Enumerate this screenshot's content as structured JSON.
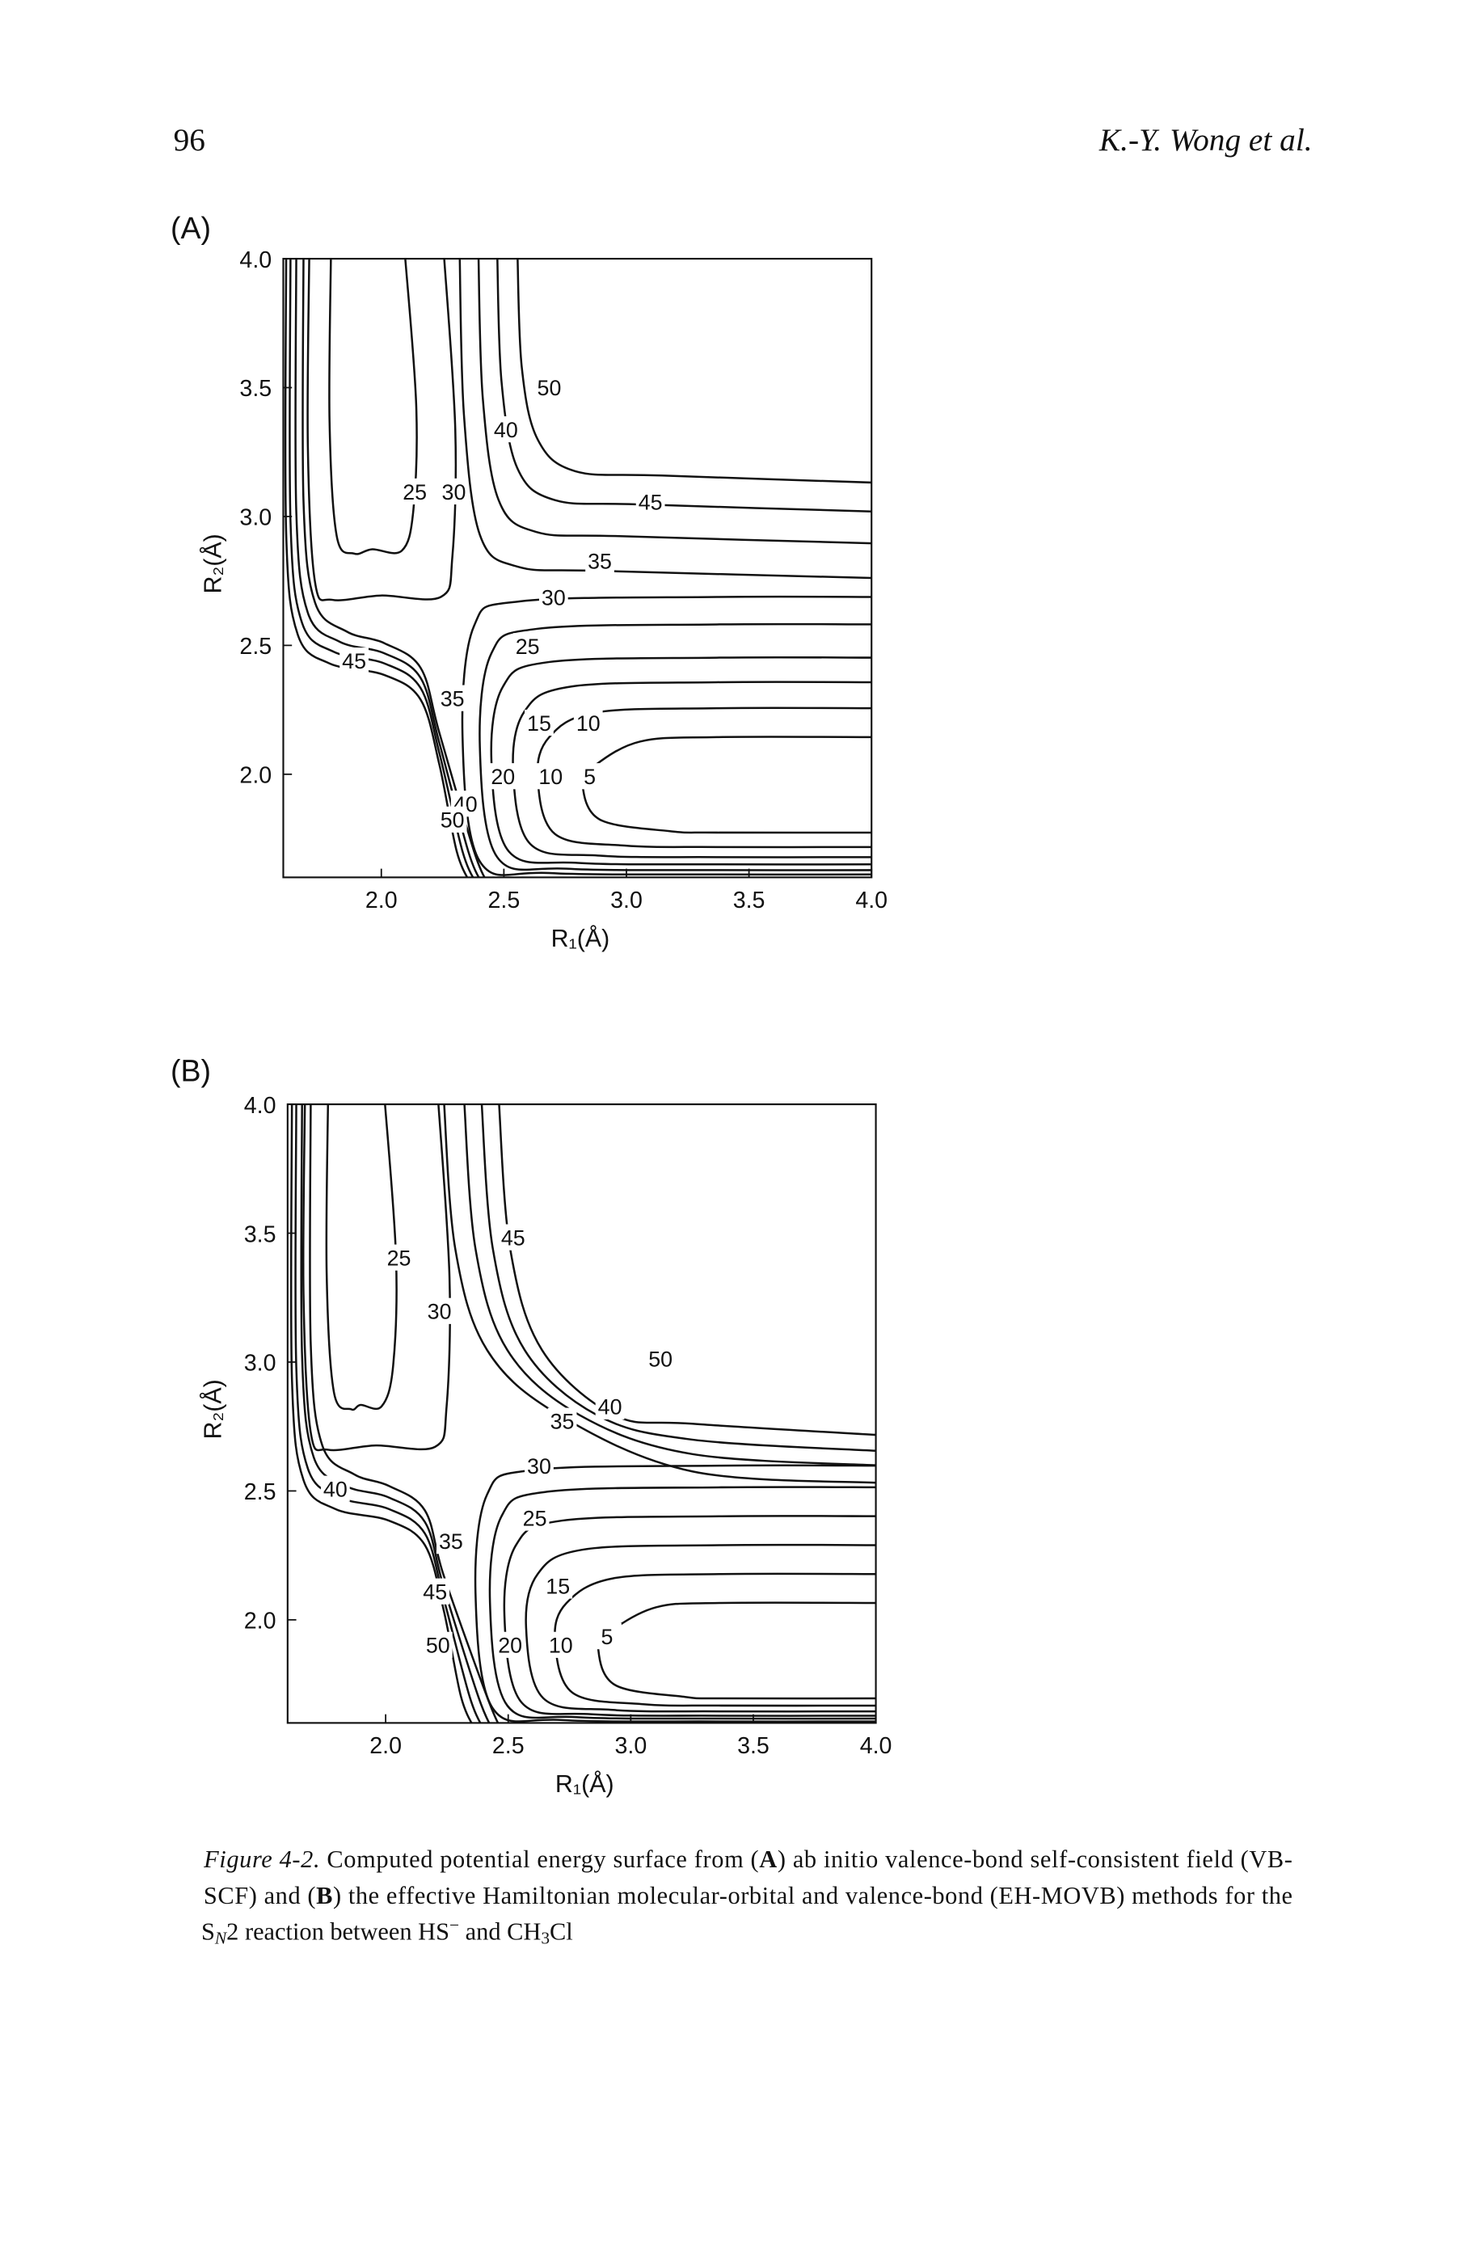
{
  "header": {
    "page_number": "96",
    "running_head": "K.-Y. Wong et al."
  },
  "chart_data": [
    {
      "type": "contour",
      "panel_label": "(A)",
      "xlabel": "R₁(Å)",
      "ylabel": "R₂(Å)",
      "xlim": [
        1.6,
        4.0
      ],
      "ylim": [
        1.6,
        4.0
      ],
      "xticks": [
        {
          "value": 2.0,
          "label": "2.0"
        },
        {
          "value": 2.5,
          "label": "2.5"
        },
        {
          "value": 3.0,
          "label": "3.0"
        },
        {
          "value": 3.5,
          "label": "3.5"
        },
        {
          "value": 4.0,
          "label": "4.0"
        }
      ],
      "yticks": [
        {
          "value": 2.0,
          "label": "2.0"
        },
        {
          "value": 2.5,
          "label": "2.5"
        },
        {
          "value": 3.0,
          "label": "3.0"
        },
        {
          "value": 3.5,
          "label": "3.5"
        },
        {
          "value": 4.0,
          "label": "4.0"
        }
      ],
      "contour_labels": [
        50,
        40,
        25,
        30,
        45,
        35,
        30,
        25,
        45,
        35,
        15,
        10,
        20,
        10,
        5,
        40,
        50
      ]
    },
    {
      "type": "contour",
      "panel_label": "(B)",
      "xlabel": "R₁(Å)",
      "ylabel": "R₂(Å)",
      "xlim": [
        1.6,
        4.0
      ],
      "ylim": [
        1.6,
        4.0
      ],
      "xticks": [
        {
          "value": 2.0,
          "label": "2.0"
        },
        {
          "value": 2.5,
          "label": "2.5"
        },
        {
          "value": 3.0,
          "label": "3.0"
        },
        {
          "value": 3.5,
          "label": "3.5"
        },
        {
          "value": 4.0,
          "label": "4.0"
        }
      ],
      "yticks": [
        {
          "value": 2.0,
          "label": "2.0"
        },
        {
          "value": 2.5,
          "label": "2.5"
        },
        {
          "value": 3.0,
          "label": "3.0"
        },
        {
          "value": 3.5,
          "label": "3.5"
        },
        {
          "value": 4.0,
          "label": "4.0"
        }
      ],
      "contour_labels": [
        45,
        25,
        30,
        50,
        40,
        35,
        40,
        30,
        25,
        35,
        15,
        45,
        50,
        20,
        10,
        5
      ]
    }
  ],
  "caption": {
    "lines": [
      [
        "Figure 4-2.",
        " Computed potential energy surface from (",
        "A",
        ") ab initio valence-bond self-consistent field (VB-"
      ],
      [
        "SCF) and (",
        "B",
        ") the effective Hamiltonian molecular-orbital and valence-bond (EH-MOVB) methods for the"
      ],
      [
        "S",
        "N",
        "2 reaction between HS",
        "−",
        " and CH",
        "3",
        "Cl"
      ]
    ]
  }
}
